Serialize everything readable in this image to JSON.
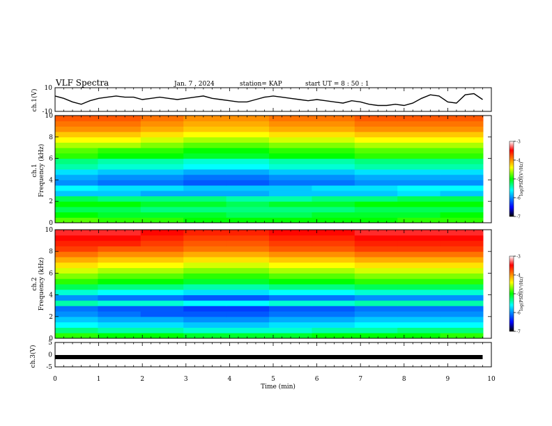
{
  "header": {
    "title": "VLF Spectra",
    "date": "Jan. 7 , 2024",
    "station": "station= KAP",
    "start": "start  UT =  8 : 50 : 1"
  },
  "chart_data": [
    {
      "type": "line",
      "panel": "ch1-waveform",
      "ylabel": "ch.1(V)",
      "ylim": [
        -10,
        10
      ],
      "yticks": [
        "10",
        "-10"
      ],
      "x": [
        0,
        0.2,
        0.4,
        0.6,
        0.8,
        1,
        1.2,
        1.4,
        1.6,
        1.8,
        2,
        2.2,
        2.4,
        2.6,
        2.8,
        3,
        3.2,
        3.4,
        3.6,
        3.8,
        4,
        4.2,
        4.4,
        4.6,
        4.8,
        5,
        5.2,
        5.4,
        5.6,
        5.8,
        6,
        6.2,
        6.4,
        6.6,
        6.8,
        7,
        7.2,
        7.4,
        7.6,
        7.8,
        8,
        8.2,
        8.4,
        8.6,
        8.8,
        9,
        9.2,
        9.4,
        9.6,
        9.8
      ],
      "values": [
        3,
        1,
        -2,
        -4,
        -1,
        1,
        2,
        3,
        2,
        2,
        0,
        1,
        2,
        1,
        0,
        1,
        2,
        3,
        1,
        0,
        -1,
        -2,
        -2,
        0,
        2,
        3,
        2,
        1,
        0,
        -1,
        0,
        -1,
        -2,
        -3,
        -1,
        -2,
        -4,
        -5,
        -5,
        -4,
        -5,
        -3,
        1,
        4,
        3,
        -2,
        -3,
        4,
        5,
        0
      ]
    },
    {
      "type": "heatmap",
      "panel": "ch1-spectrogram",
      "ylabel": "ch.1\nFrequency  (kHz)",
      "xlim": [
        0,
        10
      ],
      "ylim": [
        0,
        10
      ],
      "yticks": [
        "0",
        "2",
        "4",
        "6",
        "8",
        "10"
      ],
      "colorbar": {
        "label": "log(PSD)(V²/Hz)",
        "ticks": [
          "-3",
          "-4",
          "-5",
          "-6",
          "-7"
        ],
        "range": [
          -7,
          -3
        ]
      },
      "freq_kHz": [
        0.25,
        0.75,
        1.25,
        1.75,
        2.25,
        2.75,
        3.25,
        3.75,
        4.25,
        4.75,
        5.25,
        5.75,
        6.25,
        6.75,
        7.25,
        7.75,
        8.25,
        8.75,
        9.25,
        9.75
      ],
      "time_min": [
        0.5,
        1.5,
        2.5,
        3.5,
        4.5,
        5.5,
        6.5,
        7.5,
        8.5,
        9.5
      ],
      "log_psd": [
        [
          -4.8,
          -4.9,
          -4.9,
          -5.0,
          -5.0,
          -5.0,
          -5.0,
          -5.0,
          -4.9,
          -4.9
        ],
        [
          -5.0,
          -5.1,
          -5.1,
          -5.1,
          -5.2,
          -5.2,
          -5.1,
          -5.1,
          -5.1,
          -5.0
        ],
        [
          -5.2,
          -5.2,
          -5.3,
          -5.3,
          -5.3,
          -5.3,
          -5.3,
          -5.2,
          -5.2,
          -5.2
        ],
        [
          -5.0,
          -5.0,
          -5.1,
          -5.1,
          -5.2,
          -5.1,
          -5.1,
          -5.0,
          -5.0,
          -5.0
        ],
        [
          -5.2,
          -5.3,
          -5.3,
          -5.3,
          -5.4,
          -5.4,
          -5.3,
          -5.3,
          -5.2,
          -5.2
        ],
        [
          -5.8,
          -5.8,
          -5.9,
          -5.9,
          -5.9,
          -5.8,
          -5.8,
          -5.8,
          -5.7,
          -5.8
        ],
        [
          -5.6,
          -5.7,
          -5.7,
          -5.8,
          -5.8,
          -5.8,
          -5.7,
          -5.7,
          -5.6,
          -5.6
        ],
        [
          -6.0,
          -6.1,
          -6.1,
          -6.2,
          -6.2,
          -6.1,
          -6.1,
          -6.0,
          -6.0,
          -6.0
        ],
        [
          -5.9,
          -6.0,
          -6.0,
          -6.1,
          -6.1,
          -6.0,
          -6.0,
          -5.9,
          -5.9,
          -5.9
        ],
        [
          -5.7,
          -5.8,
          -5.8,
          -5.9,
          -5.9,
          -5.8,
          -5.8,
          -5.7,
          -5.7,
          -5.7
        ],
        [
          -5.4,
          -5.5,
          -5.5,
          -5.6,
          -5.6,
          -5.5,
          -5.5,
          -5.4,
          -5.4,
          -5.4
        ],
        [
          -5.3,
          -5.4,
          -5.4,
          -5.5,
          -5.5,
          -5.4,
          -5.4,
          -5.3,
          -5.3,
          -5.3
        ],
        [
          -4.9,
          -5.0,
          -5.0,
          -5.1,
          -5.1,
          -5.0,
          -5.0,
          -4.9,
          -4.9,
          -4.9
        ],
        [
          -4.8,
          -4.9,
          -4.9,
          -5.0,
          -5.0,
          -4.9,
          -4.9,
          -4.8,
          -4.8,
          -4.8
        ],
        [
          -4.6,
          -4.6,
          -4.7,
          -4.8,
          -4.8,
          -4.7,
          -4.7,
          -4.6,
          -4.6,
          -4.6
        ],
        [
          -4.4,
          -4.4,
          -4.5,
          -4.6,
          -4.6,
          -4.5,
          -4.5,
          -4.4,
          -4.4,
          -4.4
        ],
        [
          -4.2,
          -4.2,
          -4.3,
          -4.4,
          -4.4,
          -4.3,
          -4.3,
          -4.2,
          -4.2,
          -4.2
        ],
        [
          -4.0,
          -4.0,
          -4.1,
          -4.2,
          -4.2,
          -4.1,
          -4.1,
          -4.0,
          -4.0,
          -4.0
        ],
        [
          -3.9,
          -3.9,
          -4.0,
          -4.1,
          -4.1,
          -4.0,
          -4.0,
          -3.9,
          -3.9,
          -3.9
        ],
        [
          -3.8,
          -3.8,
          -3.9,
          -4.0,
          -4.0,
          -3.9,
          -3.9,
          -3.8,
          -3.8,
          -3.8
        ]
      ]
    },
    {
      "type": "heatmap",
      "panel": "ch2-spectrogram",
      "ylabel": "ch.2\nFrequency  (kHz)",
      "xlim": [
        0,
        10
      ],
      "ylim": [
        0,
        10
      ],
      "yticks": [
        "0",
        "2",
        "4",
        "6",
        "8",
        "10"
      ],
      "colorbar": {
        "label": "log(PSD)(V²/Hz)",
        "ticks": [
          "-3",
          "-4",
          "-5",
          "-6",
          "-7"
        ],
        "range": [
          -7,
          -3
        ]
      },
      "freq_kHz": [
        0.25,
        0.75,
        1.25,
        1.75,
        2.25,
        2.75,
        3.25,
        3.75,
        4.25,
        4.75,
        5.25,
        5.75,
        6.25,
        6.75,
        7.25,
        7.75,
        8.25,
        8.75,
        9.25,
        9.75
      ],
      "time_min": [
        0.5,
        1.5,
        2.5,
        3.5,
        4.5,
        5.5,
        6.5,
        7.5,
        8.5,
        9.5
      ],
      "log_psd": [
        [
          -4.9,
          -5.0,
          -5.0,
          -5.1,
          -5.1,
          -5.1,
          -5.0,
          -5.0,
          -5.0,
          -4.9
        ],
        [
          -5.3,
          -5.4,
          -5.4,
          -5.5,
          -5.5,
          -5.5,
          -5.4,
          -5.4,
          -5.3,
          -5.3
        ],
        [
          -5.6,
          -5.7,
          -5.7,
          -5.8,
          -5.8,
          -5.7,
          -5.7,
          -5.6,
          -5.6,
          -5.6
        ],
        [
          -5.8,
          -5.9,
          -5.9,
          -6.0,
          -6.0,
          -5.9,
          -5.9,
          -5.8,
          -5.8,
          -5.8
        ],
        [
          -6.0,
          -6.1,
          -6.2,
          -6.2,
          -6.2,
          -6.1,
          -6.1,
          -6.0,
          -6.0,
          -6.0
        ],
        [
          -6.1,
          -6.2,
          -6.2,
          -6.3,
          -6.3,
          -6.2,
          -6.2,
          -6.1,
          -6.1,
          -6.1
        ],
        [
          -5.4,
          -5.5,
          -5.5,
          -5.6,
          -5.6,
          -5.5,
          -5.5,
          -5.4,
          -5.4,
          -5.4
        ],
        [
          -6.0,
          -6.1,
          -6.1,
          -6.2,
          -6.2,
          -6.1,
          -6.1,
          -6.0,
          -6.0,
          -6.0
        ],
        [
          -5.5,
          -5.6,
          -5.6,
          -5.7,
          -5.7,
          -5.6,
          -5.6,
          -5.5,
          -5.5,
          -5.5
        ],
        [
          -5.2,
          -5.3,
          -5.3,
          -5.4,
          -5.4,
          -5.3,
          -5.3,
          -5.2,
          -5.2,
          -5.2
        ],
        [
          -4.9,
          -5.0,
          -5.0,
          -5.1,
          -5.1,
          -5.0,
          -5.0,
          -4.9,
          -4.9,
          -4.9
        ],
        [
          -4.7,
          -4.8,
          -4.8,
          -4.9,
          -4.9,
          -4.8,
          -4.8,
          -4.7,
          -4.7,
          -4.7
        ],
        [
          -4.5,
          -4.6,
          -4.6,
          -4.7,
          -4.7,
          -4.6,
          -4.6,
          -4.5,
          -4.5,
          -4.5
        ],
        [
          -4.3,
          -4.4,
          -4.4,
          -4.5,
          -4.5,
          -4.4,
          -4.4,
          -4.3,
          -4.3,
          -4.3
        ],
        [
          -4.1,
          -4.2,
          -4.2,
          -4.3,
          -4.3,
          -4.2,
          -4.2,
          -4.1,
          -4.1,
          -4.1
        ],
        [
          -3.9,
          -4.0,
          -4.0,
          -4.1,
          -4.1,
          -4.0,
          -4.0,
          -3.9,
          -3.9,
          -3.9
        ],
        [
          -3.7,
          -3.8,
          -3.8,
          -3.9,
          -3.9,
          -3.8,
          -3.8,
          -3.7,
          -3.7,
          -3.7
        ],
        [
          -3.6,
          -3.6,
          -3.7,
          -3.8,
          -3.8,
          -3.7,
          -3.7,
          -3.6,
          -3.6,
          -3.6
        ],
        [
          -3.5,
          -3.5,
          -3.6,
          -3.7,
          -3.7,
          -3.6,
          -3.6,
          -3.5,
          -3.5,
          -3.5
        ],
        [
          -3.4,
          -3.4,
          -3.5,
          -3.6,
          -3.6,
          -3.5,
          -3.5,
          -3.4,
          -3.4,
          -3.4
        ]
      ]
    },
    {
      "type": "line",
      "panel": "ch3-waveform",
      "ylabel": "ch.3(V)",
      "ylim": [
        -5,
        5
      ],
      "yticks": [
        "5",
        "0",
        "-5"
      ],
      "x": [
        0,
        9.8
      ],
      "values": [
        -1,
        -1
      ],
      "xlabel": "Time  (min)",
      "xlim": [
        0,
        10
      ],
      "xticks": [
        "0",
        "1",
        "2",
        "3",
        "4",
        "5",
        "6",
        "7",
        "8",
        "9",
        "10"
      ]
    }
  ],
  "colors": {
    "trace": "#000000",
    "background": "#ffffff",
    "colormap": [
      "#000000",
      "#0000ff",
      "#00ffff",
      "#00ff00",
      "#ffff00",
      "#ff0000",
      "#ffffff"
    ]
  }
}
